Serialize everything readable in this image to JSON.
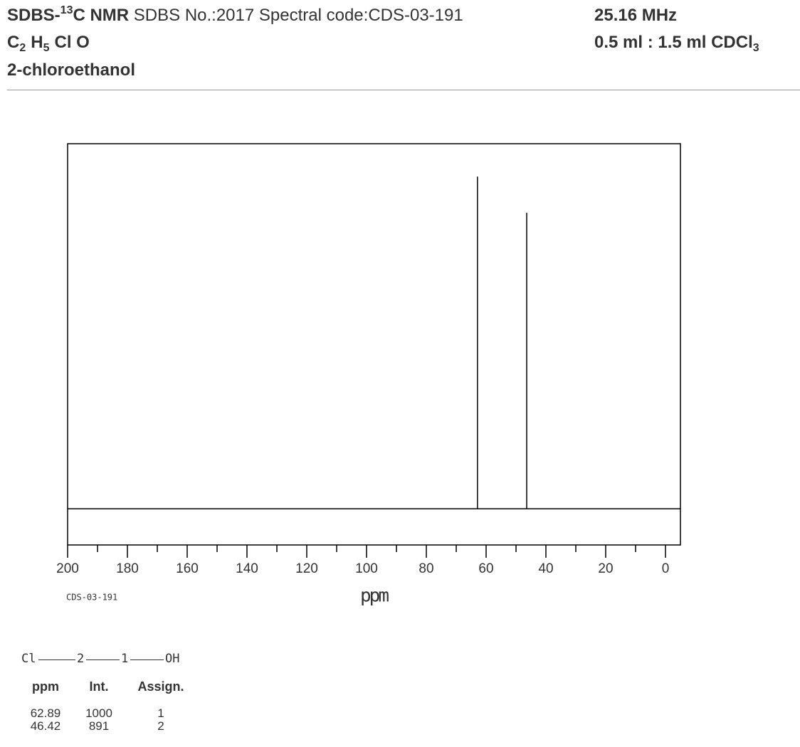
{
  "header": {
    "title_prefix": "SDBS-",
    "title_sup": "13",
    "title_main": "C NMR",
    "title_info": "SDBS No.:2017 Spectral code:CDS-03-191",
    "frequency": "25.16 MHz",
    "formula": [
      {
        "text": "C",
        "sub": "2"
      },
      {
        "text": "H",
        "sub": "5"
      },
      {
        "text": "Cl O"
      }
    ],
    "solvent": {
      "text": "0.5 ml : 1.5 ml CDCl",
      "sub": "3"
    },
    "name": "2-chloroethanol"
  },
  "chart_data": {
    "type": "stem",
    "x_label": "ppm",
    "code_label": "CDS-03-191",
    "x": [
      62.89,
      46.42
    ],
    "values": [
      1000,
      891
    ],
    "color": "#000000",
    "xlim": [
      200,
      -5
    ],
    "ylim": [
      -109,
      1099
    ],
    "xticks": [
      200,
      180,
      160,
      140,
      120,
      100,
      80,
      60,
      40,
      20,
      0
    ],
    "xminorticks": [
      190,
      170,
      150,
      130,
      110,
      90,
      70,
      50,
      30,
      10
    ]
  },
  "structure": {
    "nodes": [
      "Cl",
      "2",
      "1",
      "OH"
    ]
  },
  "peak_table": {
    "headers": [
      "ppm",
      "Int.",
      "Assign."
    ],
    "assign": [
      1,
      2
    ]
  }
}
